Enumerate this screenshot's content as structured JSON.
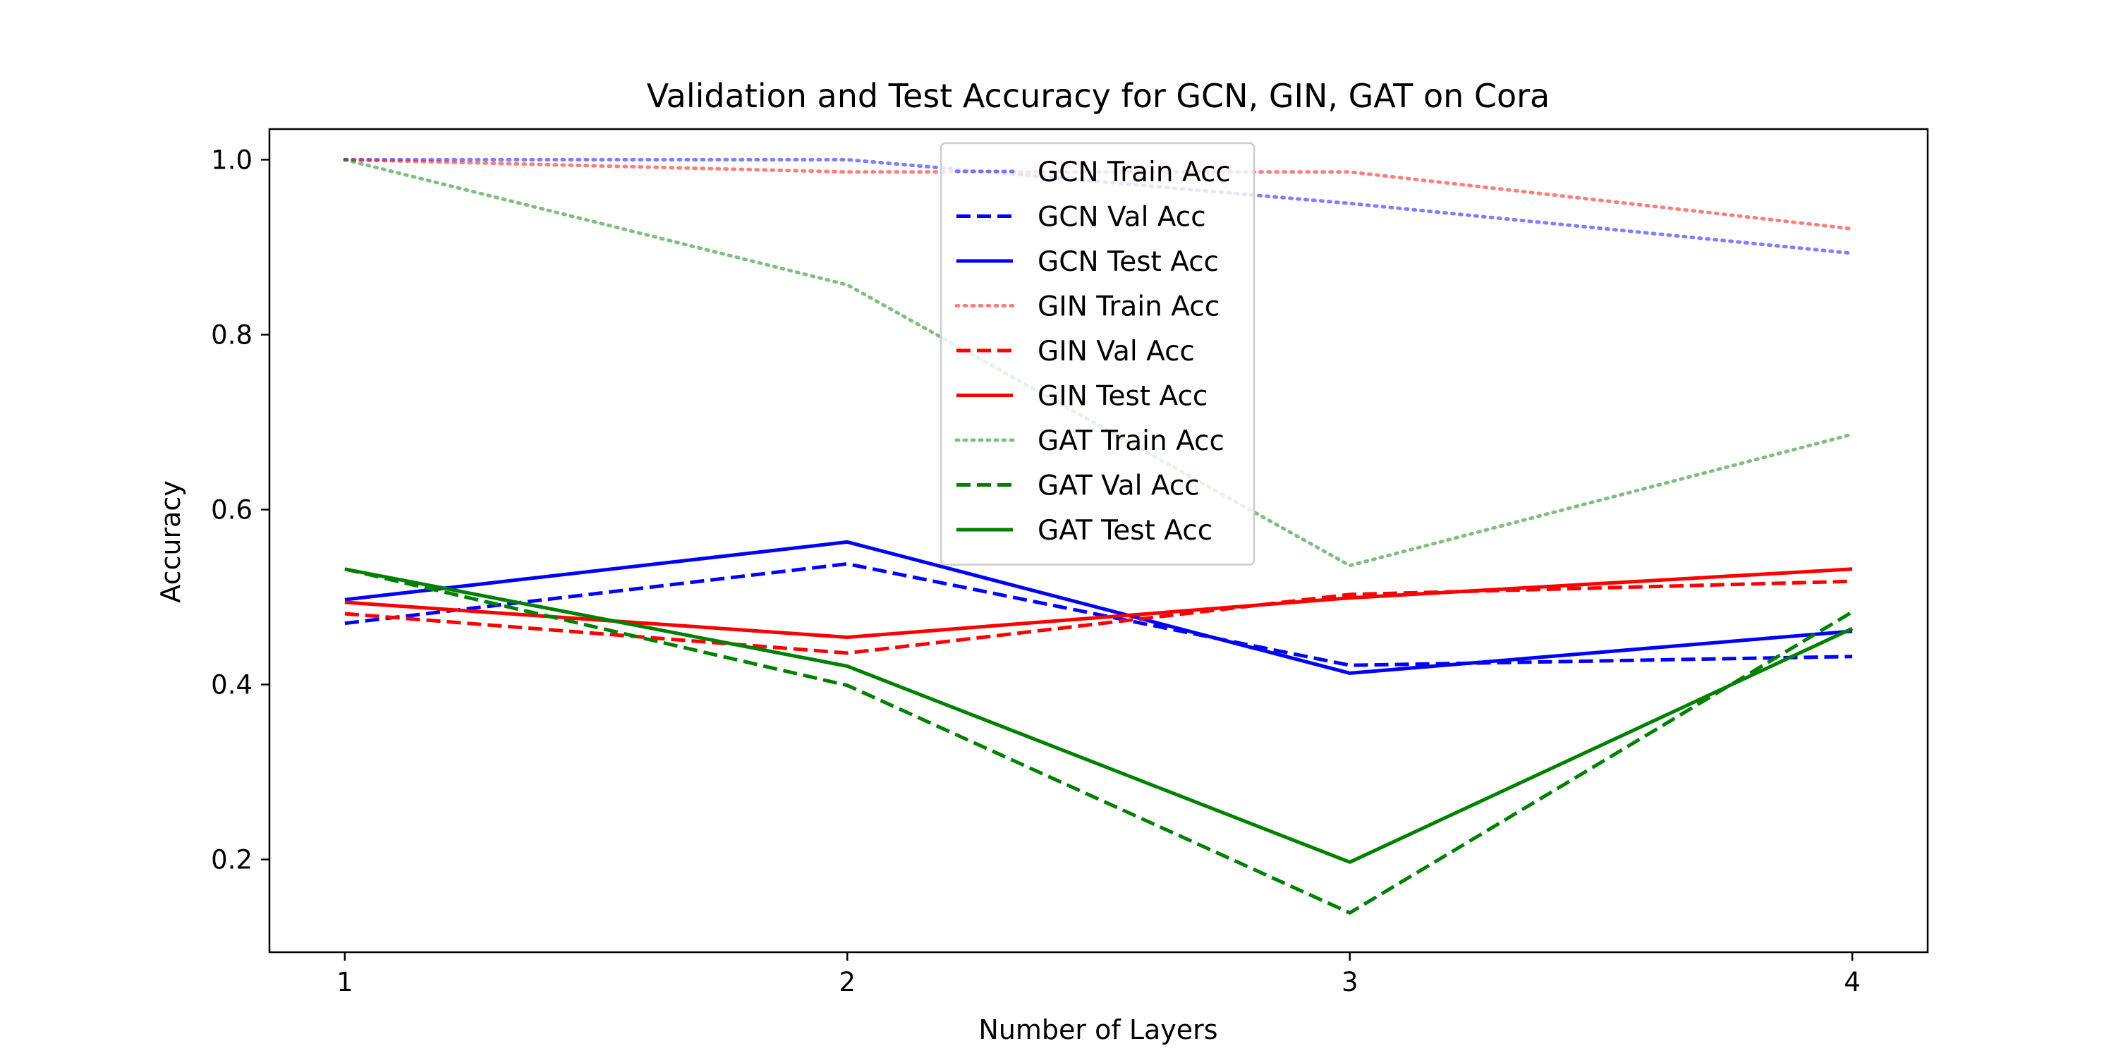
{
  "chart_data": {
    "type": "line",
    "title": "Validation and Test Accuracy for GCN, GIN, GAT on Cora",
    "xlabel": "Number of Layers",
    "ylabel": "Accuracy",
    "x": [
      1,
      2,
      3,
      4
    ],
    "xlim": [
      0.85,
      4.15
    ],
    "ylim": [
      0.094,
      1.035
    ],
    "xticks": [
      "1",
      "2",
      "3",
      "4"
    ],
    "yticks": [
      0.2,
      0.4,
      0.6,
      0.8,
      1.0
    ],
    "ytick_labels": [
      "0.2",
      "0.4",
      "0.6",
      "0.8",
      "1.0"
    ],
    "grid": false,
    "legend_position": "top-center",
    "series": [
      {
        "name": "GCN Train Acc",
        "values": [
          1.0,
          1.0,
          0.95,
          0.893
        ],
        "color": "#0000ff",
        "style": "dotted",
        "opacity": 0.5
      },
      {
        "name": "GCN Val Acc",
        "values": [
          0.47,
          0.538,
          0.422,
          0.432
        ],
        "color": "#0000ff",
        "style": "dashed",
        "opacity": 1
      },
      {
        "name": "GCN Test Acc",
        "values": [
          0.497,
          0.563,
          0.413,
          0.461
        ],
        "color": "#0000ff",
        "style": "solid",
        "opacity": 1
      },
      {
        "name": "GIN Train Acc",
        "values": [
          1.0,
          0.986,
          0.986,
          0.921
        ],
        "color": "#ff0000",
        "style": "dotted",
        "opacity": 0.5
      },
      {
        "name": "GIN Val Acc",
        "values": [
          0.481,
          0.436,
          0.503,
          0.518
        ],
        "color": "#ff0000",
        "style": "dashed",
        "opacity": 1
      },
      {
        "name": "GIN Test Acc",
        "values": [
          0.494,
          0.454,
          0.499,
          0.532
        ],
        "color": "#ff0000",
        "style": "solid",
        "opacity": 1
      },
      {
        "name": "GAT Train Acc",
        "values": [
          1.0,
          0.857,
          0.536,
          0.686
        ],
        "color": "#008000",
        "style": "dotted",
        "opacity": 0.5
      },
      {
        "name": "GAT Val Acc",
        "values": [
          0.532,
          0.399,
          0.139,
          0.483
        ],
        "color": "#008000",
        "style": "dashed",
        "opacity": 1
      },
      {
        "name": "GAT Test Acc",
        "values": [
          0.532,
          0.421,
          0.197,
          0.464
        ],
        "color": "#008000",
        "style": "solid",
        "opacity": 1
      }
    ]
  }
}
